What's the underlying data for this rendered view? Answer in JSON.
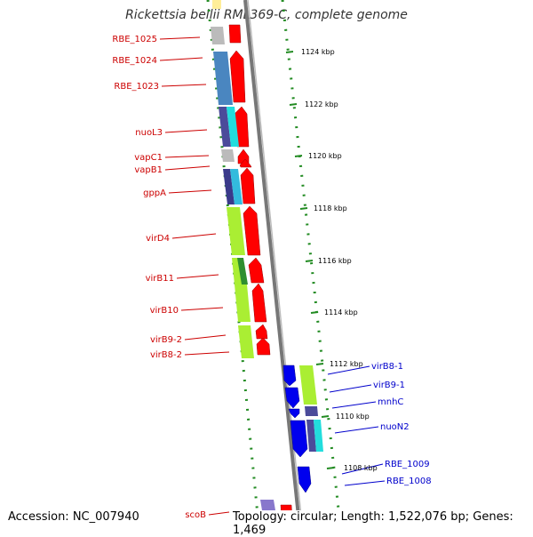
{
  "title": "Rickettsia bellii RML369-C, complete genome",
  "accession": "Accession: NC_007940",
  "summary": "Topology: circular; Length: 1,522,076 bp; Genes: 1,469",
  "ticks": [
    "1124 kbp",
    "1122 kbp",
    "1120 kbp",
    "1118 kbp",
    "1116 kbp",
    "1114 kbp",
    "1112 kbp",
    "1110 kbp",
    "1108 kbp"
  ],
  "left_labels": [
    "RBE_1025",
    "RBE_1024",
    "RBE_1023",
    "nuoL3",
    "vapC1",
    "vapB1",
    "gppA",
    "virD4",
    "virB11",
    "virB10",
    "virB9-2",
    "virB8-2",
    "scoB"
  ],
  "right_labels": [
    "virB8-1",
    "virB9-1",
    "mnhC",
    "nuoN2",
    "RBE_1009",
    "RBE_1008"
  ],
  "colors": {
    "forward": "#ff0000",
    "reverse": "#0000ee",
    "left_label": "#cc0000",
    "right_label": "#0000cc",
    "gc": "#228b22"
  }
}
